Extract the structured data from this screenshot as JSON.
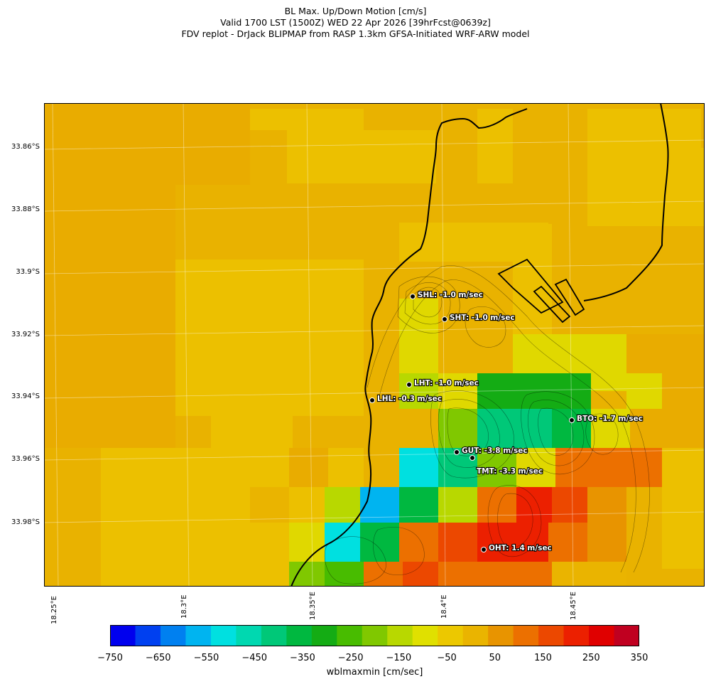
{
  "title": {
    "line1": "BL Max. Up/Down Motion [cm/s]",
    "line2": "Valid 1700 LST (1500Z) WED 22 Apr 2026 [39hrFcst@0639z]",
    "line3": "FDV replot - DrJack BLIPMAP from RASP 1.3km GFSA-Initiated WRF-ARW model"
  },
  "axes": {
    "lat_labels": [
      "33.86°S",
      "33.88°S",
      "33.9°S",
      "33.92°S",
      "33.94°S",
      "33.96°S",
      "33.98°S"
    ],
    "lon_labels": [
      "18.25°E",
      "18.3°E",
      "18.35°E",
      "18.4°E",
      "18.45°E"
    ]
  },
  "stations": [
    {
      "label": "SHL: -1.0 m/sec"
    },
    {
      "label": "SHT: -1.0 m/sec"
    },
    {
      "label": "LHT: -1.0 m/sec"
    },
    {
      "label": "LHL: -0.3 m/sec"
    },
    {
      "label": "BTO: -1.7 m/sec"
    },
    {
      "label": "GUT: -3.8 m/sec"
    },
    {
      "label": "TMT: -3.3 m/sec"
    },
    {
      "label": "OHT: 1.4 m/sec"
    }
  ],
  "colorbar": {
    "ticks": [
      "−750",
      "−650",
      "−550",
      "−450",
      "−350",
      "−250",
      "−150",
      "−50",
      "50",
      "150",
      "250",
      "350"
    ],
    "label": "wblmaxmin [cm/sec]",
    "range": [
      -750,
      350
    ],
    "step": 50,
    "colors": [
      "#0000ee",
      "#0040f0",
      "#0080f0",
      "#00b4f0",
      "#00e0e0",
      "#00d8b0",
      "#00c878",
      "#00b840",
      "#14ac14",
      "#48bc00",
      "#80c800",
      "#b8d800",
      "#e0e000",
      "#ecc800",
      "#eab400",
      "#e89400",
      "#ec7000",
      "#ec4800",
      "#ec2000",
      "#e00000",
      "#c00020"
    ]
  },
  "colors": {
    "background_field": "#e9b200",
    "coastline": "#000000"
  }
}
